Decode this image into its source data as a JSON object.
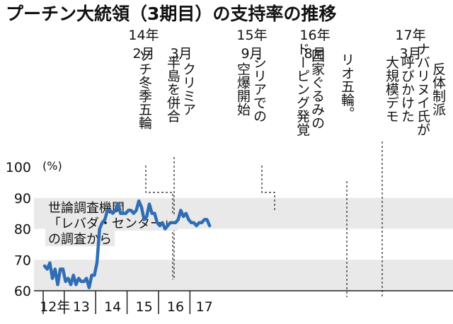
{
  "title": "プーチン大統領（3期目）の支持率の推移",
  "unit_label": "(%)",
  "source_note": [
    "世論調査機関",
    "「レバダ・センター」",
    "の調査から"
  ],
  "chart_data": {
    "type": "line",
    "title": "プーチン大統領（3期目）の支持率の推移",
    "ylabel": "(%)",
    "ylim": [
      60,
      100
    ],
    "yticks": [
      60,
      70,
      80,
      90,
      100
    ],
    "grid": "alternating horizontal bands",
    "year_labels": [
      "12年",
      "13",
      "14",
      "15",
      "16",
      "17"
    ],
    "series": [
      {
        "color": "#2f6eb5",
        "x": [
          "2012-05",
          "2012-06",
          "2012-07",
          "2012-08",
          "2012-09",
          "2012-10",
          "2012-11",
          "2012-12",
          "2013-01",
          "2013-02",
          "2013-03",
          "2013-04",
          "2013-05",
          "2013-06",
          "2013-07",
          "2013-08",
          "2013-09",
          "2013-10",
          "2013-11",
          "2013-12",
          "2014-01",
          "2014-02",
          "2014-03",
          "2014-04",
          "2014-05",
          "2014-06",
          "2014-07",
          "2014-08",
          "2014-09",
          "2014-10",
          "2014-11",
          "2014-12",
          "2015-01",
          "2015-02",
          "2015-03",
          "2015-04",
          "2015-05",
          "2015-06",
          "2015-07",
          "2015-08",
          "2015-09",
          "2015-10",
          "2015-11",
          "2015-12",
          "2016-01",
          "2016-02",
          "2016-03",
          "2016-04",
          "2016-05",
          "2016-06",
          "2016-07",
          "2016-08",
          "2016-09",
          "2016-10",
          "2016-11",
          "2016-12",
          "2017-01",
          "2017-02",
          "2017-03",
          "2017-04",
          "2017-05",
          "2017-06",
          "2017-07",
          "2017-08"
        ],
        "values": [
          68,
          67,
          69,
          64,
          67,
          62,
          67,
          67,
          63,
          64,
          62,
          65,
          62,
          64,
          63,
          63,
          64,
          61,
          65,
          65,
          69,
          80,
          82,
          83,
          86,
          86,
          85,
          86,
          88,
          85,
          85,
          85,
          86,
          86,
          85,
          86,
          89,
          87,
          83,
          84,
          88,
          85,
          85,
          82,
          81,
          82,
          80,
          81,
          82,
          82,
          82,
          83,
          86,
          84,
          85,
          83,
          82,
          82,
          81,
          82,
          82,
          83,
          83,
          81
        ]
      }
    ],
    "annotations": [
      {
        "date": "2014-02",
        "text": [
          "14年",
          "2月",
          "ソチ冬季五輪"
        ]
      },
      {
        "date": "2014-03",
        "text": [
          "3月",
          "クリミア半島を併合"
        ]
      },
      {
        "date": "2015-09",
        "text": [
          "15年",
          "9月",
          "シリアでの空爆開始"
        ]
      },
      {
        "date": "2016-08",
        "text": [
          "16年",
          "8月",
          "国家ぐるみのドーピング発覚",
          "リオ五輪。"
        ]
      },
      {
        "date": "2017-03",
        "text": [
          "17年",
          "3月",
          "反体制派ナバリヌイ氏が呼びかけた大規模デモ"
        ]
      }
    ]
  }
}
